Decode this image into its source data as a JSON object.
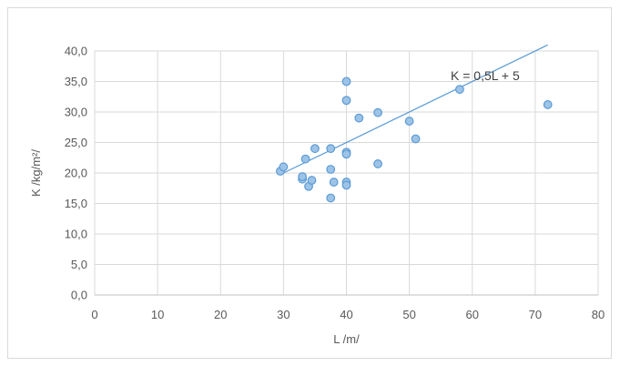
{
  "chart_data": {
    "type": "scatter",
    "title": "",
    "xlabel": "L /m/",
    "ylabel": "K /kg/m²/",
    "xlim": [
      0,
      80
    ],
    "ylim": [
      0,
      40
    ],
    "x_ticks": [
      "0",
      "10",
      "20",
      "30",
      "40",
      "50",
      "60",
      "70",
      "80"
    ],
    "y_ticks": [
      "0,0",
      "5,0",
      "10,0",
      "15,0",
      "20,0",
      "25,0",
      "30,0",
      "35,0",
      "40,0"
    ],
    "grid": true,
    "legend": "none",
    "points": [
      {
        "x": 29.5,
        "y": 20.3
      },
      {
        "x": 30.0,
        "y": 21.0
      },
      {
        "x": 33.0,
        "y": 19.0
      },
      {
        "x": 33.0,
        "y": 19.4
      },
      {
        "x": 33.5,
        "y": 22.3
      },
      {
        "x": 34.0,
        "y": 17.8
      },
      {
        "x": 34.5,
        "y": 18.8
      },
      {
        "x": 35.0,
        "y": 24.0
      },
      {
        "x": 37.5,
        "y": 24.0
      },
      {
        "x": 37.5,
        "y": 20.6
      },
      {
        "x": 37.5,
        "y": 15.9
      },
      {
        "x": 38.0,
        "y": 18.5
      },
      {
        "x": 40.0,
        "y": 35.0
      },
      {
        "x": 40.0,
        "y": 31.9
      },
      {
        "x": 40.0,
        "y": 23.4
      },
      {
        "x": 40.0,
        "y": 23.1
      },
      {
        "x": 40.0,
        "y": 18.5
      },
      {
        "x": 40.0,
        "y": 18.0
      },
      {
        "x": 42.0,
        "y": 29.0
      },
      {
        "x": 45.0,
        "y": 29.9
      },
      {
        "x": 45.0,
        "y": 21.5
      },
      {
        "x": 50.0,
        "y": 28.5
      },
      {
        "x": 51.0,
        "y": 25.6
      },
      {
        "x": 58.0,
        "y": 33.7
      },
      {
        "x": 72.0,
        "y": 31.2
      }
    ],
    "trendline": {
      "label": "K = 0,5L + 5",
      "slope": 0.5,
      "intercept": 5,
      "x_range": [
        30,
        72
      ]
    },
    "colors": {
      "marker_fill": "#9dc3e6",
      "marker_stroke": "#5b9bd5",
      "trendline": "#5b9bd5",
      "grid": "#d9d9d9"
    }
  }
}
